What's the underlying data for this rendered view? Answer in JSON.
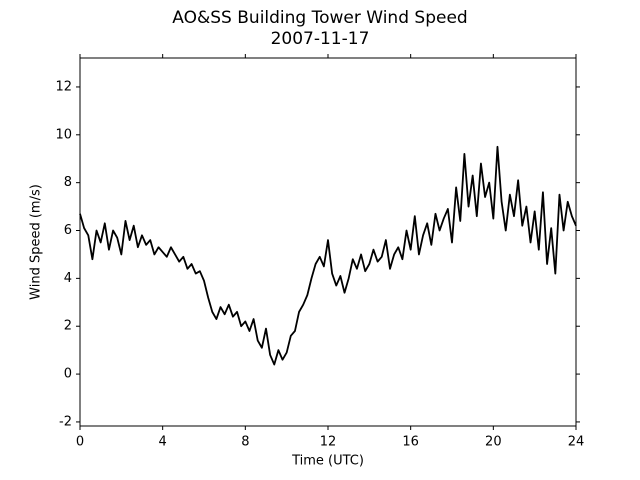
{
  "chart_data": {
    "type": "line",
    "title": "AO&SS Building Tower Wind Speed",
    "subtitle": "2007-11-17",
    "x_label": "Time (UTC)",
    "y_label": "Wind Speed (m/s)",
    "xlim": [
      0,
      24
    ],
    "xticks": [
      0,
      4,
      8,
      12,
      16,
      20,
      24
    ],
    "ylim": [
      -2.17,
      13.21
    ],
    "yticks": [
      -2,
      0,
      2,
      4,
      6,
      8,
      10,
      12
    ],
    "series": [
      {
        "color": "#000000",
        "x": [
          0,
          0.2,
          0.4,
          0.6,
          0.8,
          1,
          1.2,
          1.4,
          1.6,
          1.8,
          2,
          2.2,
          2.4,
          2.6,
          2.8,
          3,
          3.2,
          3.4,
          3.6,
          3.8,
          4,
          4.2,
          4.4,
          4.6,
          4.8,
          5,
          5.2,
          5.4,
          5.6,
          5.8,
          6,
          6.2,
          6.4,
          6.6,
          6.8,
          7,
          7.2,
          7.4,
          7.6,
          7.8,
          8,
          8.2,
          8.4,
          8.6,
          8.8,
          9,
          9.2,
          9.4,
          9.6,
          9.8,
          10,
          10.2,
          10.4,
          10.6,
          10.8,
          11,
          11.2,
          11.4,
          11.6,
          11.8,
          12,
          12.2,
          12.4,
          12.6,
          12.8,
          13,
          13.2,
          13.4,
          13.6,
          13.8,
          14,
          14.2,
          14.4,
          14.6,
          14.8,
          15,
          15.2,
          15.4,
          15.6,
          15.8,
          16,
          16.2,
          16.4,
          16.6,
          16.8,
          17,
          17.2,
          17.4,
          17.6,
          17.8,
          18,
          18.2,
          18.4,
          18.6,
          18.8,
          19,
          19.2,
          19.4,
          19.6,
          19.8,
          20,
          20.2,
          20.4,
          20.6,
          20.8,
          21,
          21.2,
          21.4,
          21.6,
          21.8,
          22,
          22.2,
          22.4,
          22.6,
          22.8,
          23,
          23.2,
          23.4,
          23.6,
          23.8,
          24
        ],
        "values": [
          6.7,
          6.1,
          5.8,
          4.8,
          6.0,
          5.5,
          6.3,
          5.2,
          6.0,
          5.7,
          5.0,
          6.4,
          5.6,
          6.2,
          5.3,
          5.8,
          5.4,
          5.6,
          5.0,
          5.3,
          5.1,
          4.9,
          5.3,
          5.0,
          4.7,
          4.9,
          4.4,
          4.6,
          4.2,
          4.3,
          3.9,
          3.2,
          2.6,
          2.3,
          2.8,
          2.5,
          2.9,
          2.4,
          2.6,
          2.0,
          2.2,
          1.8,
          2.3,
          1.4,
          1.1,
          1.9,
          0.8,
          0.4,
          1.0,
          0.6,
          0.9,
          1.6,
          1.8,
          2.6,
          2.9,
          3.3,
          4.0,
          4.6,
          4.9,
          4.5,
          5.6,
          4.2,
          3.7,
          4.1,
          3.4,
          4.0,
          4.8,
          4.4,
          5.0,
          4.3,
          4.6,
          5.2,
          4.7,
          4.9,
          5.6,
          4.4,
          5.0,
          5.3,
          4.8,
          6.0,
          5.2,
          6.6,
          5.0,
          5.8,
          6.3,
          5.4,
          6.7,
          6.0,
          6.5,
          6.9,
          5.5,
          7.8,
          6.4,
          9.2,
          7.0,
          8.3,
          6.6,
          8.8,
          7.4,
          8.0,
          6.5,
          9.5,
          7.2,
          6.0,
          7.5,
          6.6,
          8.1,
          6.2,
          7.0,
          5.5,
          6.8,
          5.2,
          7.6,
          4.6,
          6.1,
          4.2,
          7.5,
          6.0,
          7.2,
          6.6,
          6.2
        ]
      }
    ]
  }
}
